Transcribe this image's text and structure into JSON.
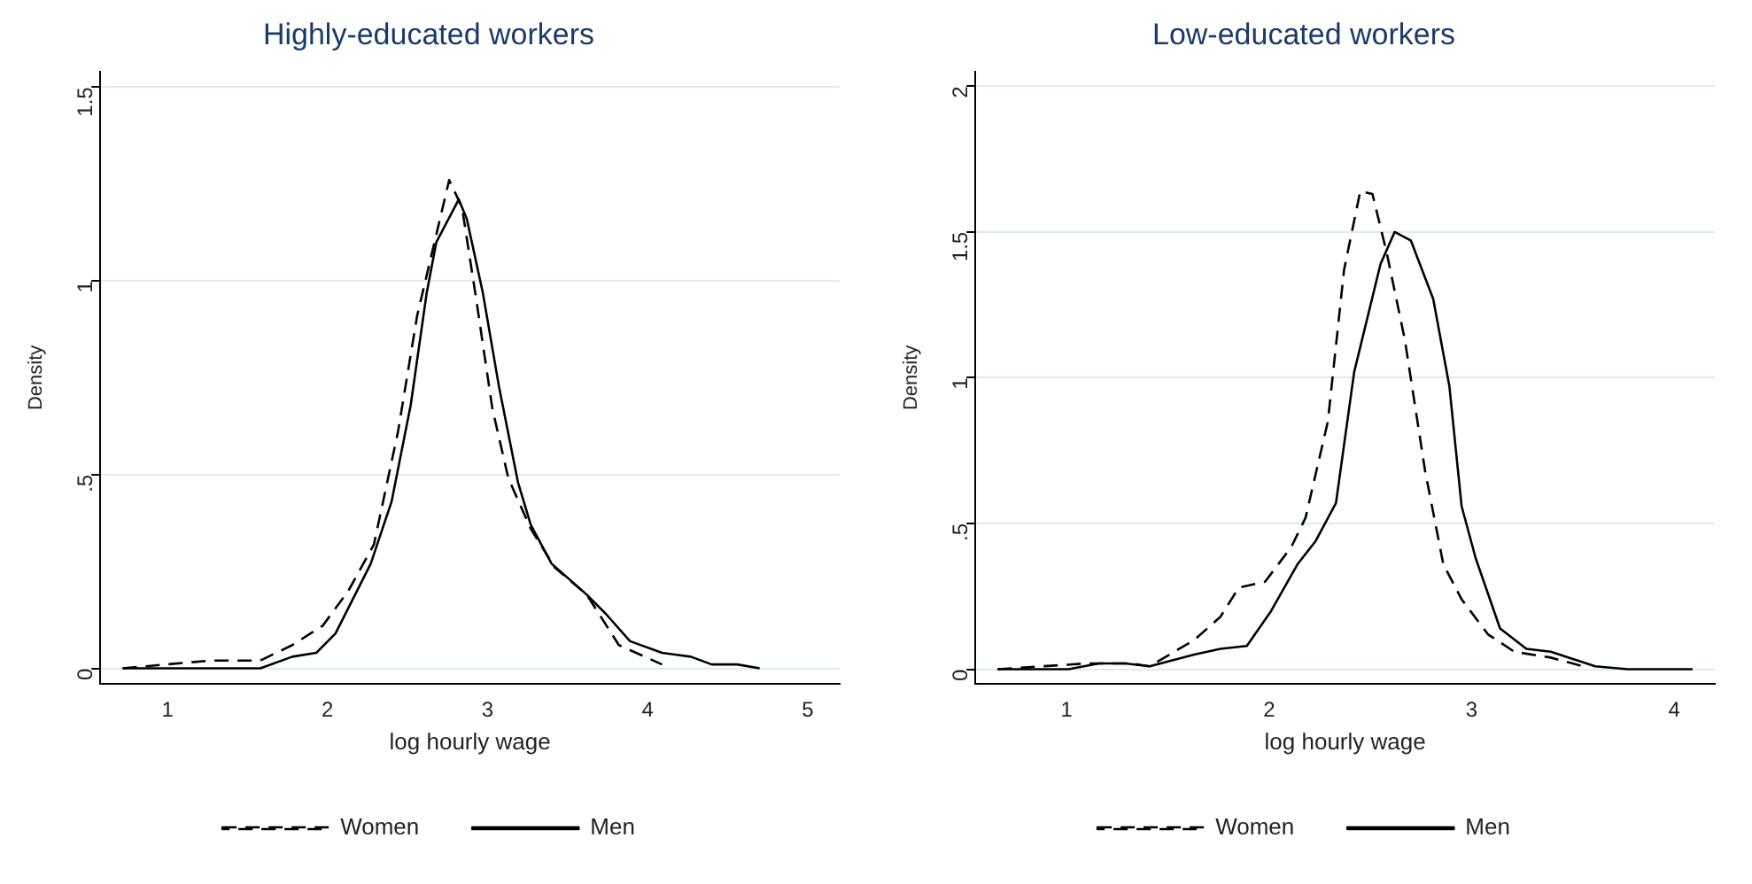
{
  "chart_data": [
    {
      "type": "line",
      "title": "Highly-educated workers",
      "xlabel": "log hourly wage",
      "ylabel": "Density",
      "xlim": [
        0.58,
        5.2
      ],
      "xticks": [
        1,
        2,
        3,
        4,
        5
      ],
      "ylim": [
        -0.04,
        1.54
      ],
      "yticks": [
        0,
        {
          "value": 0.5,
          "label": ".5"
        },
        1,
        1.5
      ],
      "grid": "y",
      "legend": "bottom",
      "marker": "none",
      "series": [
        {
          "name": "Women",
          "color": "#000000",
          "line_style": "dashed",
          "x": [
            0.72,
            0.99,
            1.27,
            1.38,
            1.58,
            1.78,
            1.97,
            2.13,
            2.29,
            2.44,
            2.56,
            2.64,
            2.76,
            2.84,
            2.93,
            3.03,
            3.13,
            3.27,
            3.42,
            3.62,
            3.82,
            4.09
          ],
          "values": [
            0,
            0.01,
            0.02,
            0.02,
            0.02,
            0.06,
            0.11,
            0.2,
            0.32,
            0.61,
            0.91,
            1.05,
            1.26,
            1.19,
            0.95,
            0.67,
            0.49,
            0.36,
            0.26,
            0.19,
            0.06,
            0.01
          ]
        },
        {
          "name": "Men",
          "color": "#000000",
          "line_style": "solid",
          "x": [
            0.72,
            1.58,
            1.78,
            1.93,
            2.05,
            2.27,
            2.4,
            2.52,
            2.62,
            2.68,
            2.82,
            2.87,
            2.97,
            3.07,
            3.19,
            3.27,
            3.4,
            3.62,
            3.74,
            3.89,
            4.09,
            4.27,
            4.4,
            4.56,
            4.7
          ],
          "values": [
            0,
            0,
            0.03,
            0.04,
            0.09,
            0.27,
            0.43,
            0.68,
            0.97,
            1.1,
            1.21,
            1.16,
            0.97,
            0.73,
            0.48,
            0.37,
            0.27,
            0.19,
            0.14,
            0.07,
            0.04,
            0.03,
            0.01,
            0.01,
            0
          ]
        }
      ]
    },
    {
      "type": "line",
      "title": "Low-educated workers",
      "xlabel": "log hourly wage",
      "ylabel": "Density",
      "xlim": [
        0.55,
        4.2
      ],
      "xticks": [
        1,
        2,
        3,
        4
      ],
      "ylim": [
        -0.05,
        2.05
      ],
      "yticks": [
        0,
        {
          "value": 0.5,
          "label": ".5"
        },
        1,
        1.5,
        2
      ],
      "grid": "y",
      "legend": "bottom",
      "marker": "none",
      "series": [
        {
          "name": "Women",
          "color": "#000000",
          "line_style": "dashed",
          "x": [
            0.66,
            1.1,
            1.32,
            1.41,
            1.63,
            1.76,
            1.85,
            1.98,
            2.11,
            2.18,
            2.29,
            2.37,
            2.45,
            2.51,
            2.58,
            2.67,
            2.77,
            2.86,
            2.95,
            3.08,
            3.21,
            3.39,
            3.55
          ],
          "values": [
            0,
            0.02,
            0.02,
            0.01,
            0.1,
            0.18,
            0.28,
            0.3,
            0.42,
            0.52,
            0.85,
            1.37,
            1.64,
            1.63,
            1.43,
            1.13,
            0.68,
            0.36,
            0.24,
            0.12,
            0.06,
            0.04,
            0.01
          ]
        },
        {
          "name": "Men",
          "color": "#000000",
          "line_style": "solid",
          "x": [
            0.66,
            1.01,
            1.16,
            1.29,
            1.41,
            1.63,
            1.76,
            1.89,
            2.01,
            2.14,
            2.23,
            2.33,
            2.42,
            2.55,
            2.62,
            2.7,
            2.81,
            2.89,
            2.95,
            3.02,
            3.14,
            3.27,
            3.39,
            3.61,
            3.77,
            4.09
          ],
          "values": [
            0,
            0,
            0.02,
            0.02,
            0.01,
            0.05,
            0.07,
            0.08,
            0.2,
            0.36,
            0.44,
            0.57,
            1.02,
            1.39,
            1.5,
            1.47,
            1.27,
            0.97,
            0.56,
            0.38,
            0.14,
            0.07,
            0.06,
            0.01,
            0,
            0
          ]
        }
      ]
    }
  ]
}
